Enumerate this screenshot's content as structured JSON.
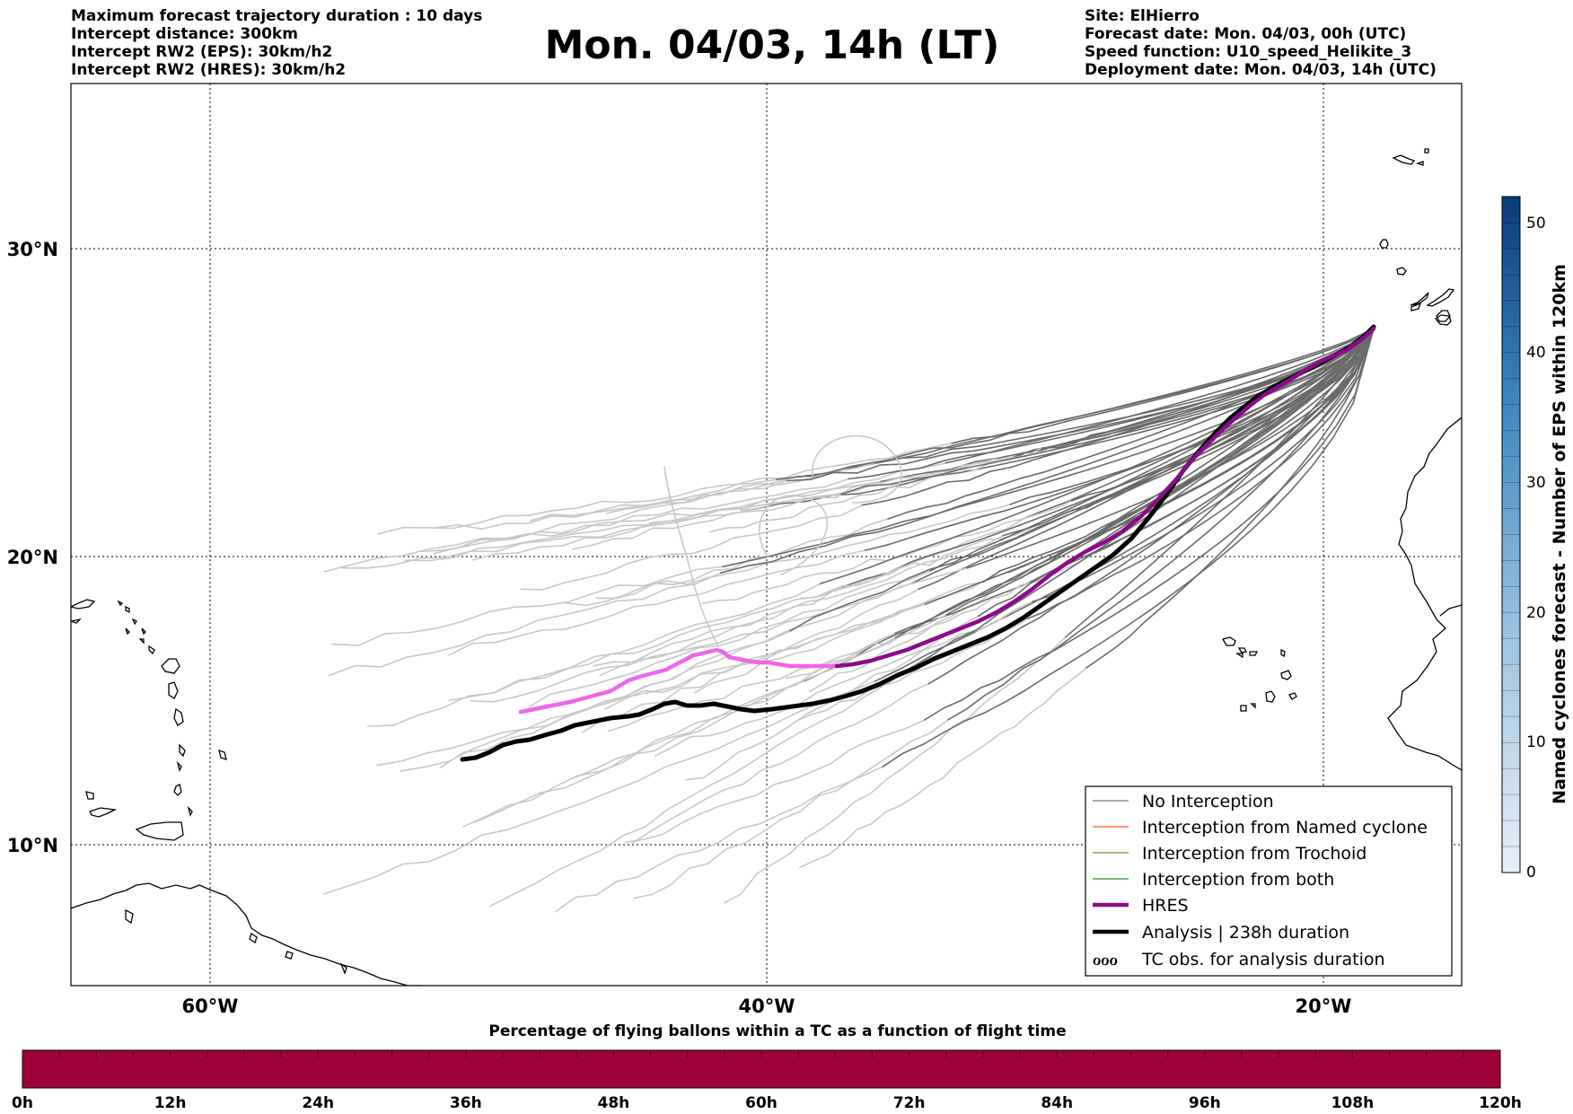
{
  "header": {
    "left_lines": [
      "Maximum forecast trajectory duration : 10 days",
      "Intercept distance: 300km",
      "Intercept RW2 (EPS):  30km/h2",
      "Intercept RW2 (HRES): 30km/h2"
    ],
    "title": "Mon. 04/03, 14h (LT)",
    "right_lines": [
      "Site: ElHierro",
      "Forecast date: Mon. 04/03, 00h (UTC)",
      "Speed function: U10_speed_Helikite_3",
      "Deployment date: Mon. 04/03, 14h (UTC)"
    ]
  },
  "map": {
    "lat_labels": [
      "30°N",
      "20°N",
      "10°N"
    ],
    "lon_labels": [
      "60°W",
      "40°W",
      "20°W"
    ],
    "legend": [
      {
        "label": "No Interception",
        "color": "#777777",
        "style": "thin"
      },
      {
        "label": "Interception from Named cyclone",
        "color": "#ff5522",
        "style": "thin"
      },
      {
        "label": "Interception from Trochoid",
        "color": "#8a8a2a",
        "style": "thin"
      },
      {
        "label": "Interception from both",
        "color": "#2a8a2a",
        "style": "thin"
      },
      {
        "label": "HRES",
        "color": "#8b0a8b",
        "style": "thick"
      },
      {
        "label": "Analysis | 238h duration",
        "color": "#000000",
        "style": "thick"
      },
      {
        "label": "TC obs. for analysis duration",
        "color": "#000000",
        "style": "symbol",
        "symbol": "ℴℴℴ"
      }
    ],
    "colors": {
      "hres_early": "#ee66ee",
      "hres_late": "#8b0a8b",
      "analysis": "#000000",
      "eps_early": "#c8c8c8",
      "eps_late": "#6a6a6a"
    }
  },
  "colorbar_right": {
    "label": "Named cyclones forecast - Number of EPS within 120km",
    "ticks": [
      "0",
      "10",
      "20",
      "30",
      "40",
      "50"
    ]
  },
  "timebar": {
    "title": "Percentage of flying ballons within a TC as a function of flight time",
    "ticks": [
      "0h",
      "12h",
      "24h",
      "36h",
      "48h",
      "60h",
      "72h",
      "84h",
      "96h",
      "108h",
      "120h"
    ],
    "color": "#9e0039"
  }
}
